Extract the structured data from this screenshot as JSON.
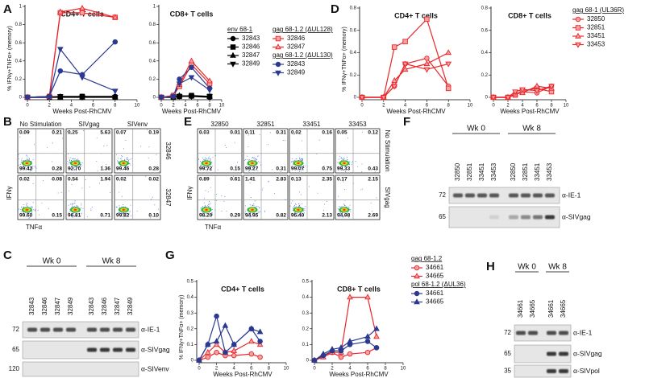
{
  "chart_data": [
    {
      "type": "line",
      "label": "A",
      "title": "CD4+ T cells",
      "xlabel": "Weeks Post-RhCMV",
      "ylabel": "% IFNγ+TNFα+ (memory)",
      "x": [
        0,
        2,
        3,
        5,
        8
      ],
      "xlim": [
        0,
        10
      ],
      "xticks": [
        0,
        2,
        4,
        6,
        8,
        10
      ],
      "ylim": [
        0,
        1
      ],
      "yticks": [
        0,
        0.2,
        0.4,
        0.6,
        0.8,
        1
      ],
      "series": [
        {
          "color": "#000000",
          "fill": "#000000",
          "marker": "circle",
          "values": [
            0,
            0,
            0.01,
            0.01,
            0.01
          ]
        },
        {
          "color": "#000000",
          "fill": "#000000",
          "marker": "square",
          "values": [
            0,
            0,
            0,
            0.01,
            0
          ]
        },
        {
          "color": "#000000",
          "fill": "#000000",
          "marker": "triangle",
          "values": [
            0,
            0.01,
            0,
            0,
            0.01
          ]
        },
        {
          "color": "#000000",
          "fill": "#000000",
          "marker": "triangle-down",
          "values": [
            0,
            0,
            0.01,
            0,
            0
          ]
        },
        {
          "color": "#e8262a",
          "fill": "#f7a1a1",
          "marker": "square",
          "values": [
            0,
            0.01,
            0.93,
            0.93,
            0.88
          ]
        },
        {
          "color": "#e8262a",
          "fill": "#f7a1a1",
          "marker": "triangle",
          "values": [
            0,
            0.01,
            0.94,
            0.98,
            0.88
          ]
        },
        {
          "color": "#2b3990",
          "fill": "#2b3990",
          "marker": "circle",
          "values": [
            0,
            0.01,
            0.29,
            0.25,
            0.61
          ]
        },
        {
          "color": "#2b3990",
          "fill": "#2b3990",
          "marker": "triangle-down",
          "values": [
            0,
            0,
            0.53,
            0.22,
            0.07
          ]
        }
      ]
    },
    {
      "type": "line",
      "title": "CD8+ T cells",
      "xlabel": "Weeks Post-RhCMV",
      "x": [
        0,
        2,
        3,
        5,
        8
      ],
      "xlim": [
        0,
        10
      ],
      "xticks": [
        0,
        2,
        4,
        6,
        8,
        10
      ],
      "ylim": [
        0,
        1
      ],
      "yticks": [
        0,
        0.2,
        0.4,
        0.6,
        0.8,
        1
      ],
      "series": [
        {
          "color": "#000000",
          "fill": "#000000",
          "marker": "circle",
          "values": [
            0,
            0.01,
            0.01,
            0.01,
            0
          ]
        },
        {
          "color": "#000000",
          "fill": "#000000",
          "marker": "square",
          "values": [
            0,
            0,
            0.01,
            0.02,
            0.01
          ]
        },
        {
          "color": "#000000",
          "fill": "#000000",
          "marker": "triangle",
          "values": [
            0,
            0.01,
            0.02,
            0.01,
            0.01
          ]
        },
        {
          "color": "#000000",
          "fill": "#000000",
          "marker": "triangle-down",
          "values": [
            0,
            0,
            0.01,
            0.01,
            0.01
          ]
        },
        {
          "color": "#e8262a",
          "fill": "#f7a1a1",
          "marker": "square",
          "values": [
            0,
            0.02,
            0.12,
            0.36,
            0.15
          ]
        },
        {
          "color": "#e8262a",
          "fill": "#f7a1a1",
          "marker": "triangle",
          "values": [
            0,
            0.02,
            0.14,
            0.4,
            0.18
          ]
        },
        {
          "color": "#2b3990",
          "fill": "#2b3990",
          "marker": "circle",
          "values": [
            0,
            0.01,
            0.2,
            0.33,
            0.1
          ]
        },
        {
          "color": "#2b3990",
          "fill": "#2b3990",
          "marker": "triangle-down",
          "values": [
            0,
            0.01,
            0.15,
            0.22,
            0.08
          ]
        }
      ],
      "legend": [
        {
          "title": "env 68-1",
          "color": "#000000",
          "names": [
            "32843",
            "32846",
            "32847",
            "32849"
          ]
        },
        {
          "title": "gag 68-1.2 (ΔUL128)",
          "color": "#e8262a",
          "names": [
            "32846",
            "32847"
          ]
        },
        {
          "title": "gag 68-1.2 (ΔUL130)",
          "color": "#2b3990",
          "names": [
            "32843",
            "32849"
          ]
        }
      ]
    },
    {
      "type": "line",
      "label": "D",
      "title": "CD4+ T cells",
      "xlabel": "Weeks Post-RhCMV",
      "ylabel": "% IFNγ+TNFα+ (memory)",
      "x": [
        0,
        2,
        3,
        4,
        6,
        8
      ],
      "xlim": [
        0,
        10
      ],
      "xticks": [
        0,
        2,
        4,
        6,
        8,
        10
      ],
      "ylim": [
        0,
        0.8
      ],
      "yticks": [
        0,
        0.2,
        0.4,
        0.6,
        0.8
      ],
      "series": [
        {
          "color": "#e8262a",
          "fill": "#f7a1a1",
          "marker": "circle",
          "values": [
            0,
            0,
            0.1,
            0.3,
            0.35,
            0.1
          ]
        },
        {
          "color": "#e8262a",
          "fill": "#f7a1a1",
          "marker": "square",
          "values": [
            0,
            0,
            0.45,
            0.5,
            0.7,
            0.08
          ]
        },
        {
          "color": "#e8262a",
          "fill": "#f7a1a1",
          "marker": "triangle",
          "values": [
            0,
            0,
            0.15,
            0.25,
            0.3,
            0.4
          ]
        },
        {
          "color": "#e8262a",
          "fill": "#f7a1a1",
          "marker": "triangle-down",
          "values": [
            0,
            0,
            0.1,
            0.3,
            0.25,
            0.3
          ]
        }
      ]
    },
    {
      "type": "line",
      "title": "CD8+ T cells",
      "xlabel": "Weeks Post-RhCMV",
      "x": [
        0,
        2,
        3,
        4,
        6,
        8
      ],
      "xlim": [
        0,
        10
      ],
      "xticks": [
        0,
        2,
        4,
        6,
        8,
        10
      ],
      "ylim": [
        0,
        0.8
      ],
      "yticks": [
        0,
        0.2,
        0.4,
        0.6,
        0.8
      ],
      "series": [
        {
          "color": "#e8262a",
          "fill": "#f7a1a1",
          "marker": "circle",
          "values": [
            0,
            0,
            0.03,
            0.05,
            0.04,
            0.1
          ]
        },
        {
          "color": "#e8262a",
          "fill": "#f7a1a1",
          "marker": "square",
          "values": [
            0,
            0,
            0.02,
            0.06,
            0.08,
            0.05
          ]
        },
        {
          "color": "#e8262a",
          "fill": "#f7a1a1",
          "marker": "triangle",
          "values": [
            0,
            0,
            0.03,
            0.04,
            0.1,
            0.08
          ]
        },
        {
          "color": "#e8262a",
          "fill": "#f7a1a1",
          "marker": "triangle-down",
          "values": [
            0,
            0,
            0.05,
            0.07,
            0.06,
            0.1
          ]
        }
      ],
      "legend": [
        {
          "title": "gag 68-1 (UL36R)",
          "color": "#e8262a",
          "names": [
            "32850",
            "32851",
            "33451",
            "33453"
          ]
        }
      ]
    },
    {
      "type": "line",
      "label": "G",
      "title": "CD4+ T cells",
      "xlabel": "Weeks Post-RhCMV",
      "ylabel": "% IFNγ+TNFα+ (memory)",
      "x": [
        0,
        1,
        2,
        3,
        4,
        6,
        7
      ],
      "xlim": [
        0,
        10
      ],
      "xticks": [
        0,
        2,
        4,
        6,
        8,
        10
      ],
      "ylim": [
        0,
        0.5
      ],
      "yticks": [
        0,
        0.1,
        0.2,
        0.3,
        0.4,
        0.5
      ],
      "series": [
        {
          "color": "#e8262a",
          "fill": "#f7a1a1",
          "marker": "circle",
          "values": [
            0,
            0.02,
            0.05,
            0.03,
            0.03,
            0.04,
            0.02
          ]
        },
        {
          "color": "#e8262a",
          "fill": "#f7a1a1",
          "marker": "triangle",
          "values": [
            0,
            0.05,
            0.1,
            0.05,
            0.06,
            0.12,
            0.1
          ]
        },
        {
          "color": "#2b3990",
          "fill": "#2b3990",
          "marker": "circle",
          "values": [
            0,
            0.1,
            0.28,
            0.05,
            0.1,
            0.2,
            0.12
          ]
        },
        {
          "color": "#2b3990",
          "fill": "#2b3990",
          "marker": "triangle",
          "values": [
            0,
            0.1,
            0.12,
            0.22,
            0.1,
            0.2,
            0.18
          ]
        }
      ]
    },
    {
      "type": "line",
      "title": "CD8+ T cells",
      "xlabel": "Weeks Post-RhCMV",
      "x": [
        0,
        1,
        2,
        3,
        4,
        6,
        7
      ],
      "xlim": [
        0,
        10
      ],
      "xticks": [
        0,
        2,
        4,
        6,
        8,
        10
      ],
      "ylim": [
        0,
        0.5
      ],
      "yticks": [
        0,
        0.1,
        0.2,
        0.3,
        0.4,
        0.5
      ],
      "series": [
        {
          "color": "#e8262a",
          "fill": "#f7a1a1",
          "marker": "circle",
          "values": [
            0,
            0.03,
            0.05,
            0.02,
            0.04,
            0.05,
            0.08
          ]
        },
        {
          "color": "#e8262a",
          "fill": "#f7a1a1",
          "marker": "triangle",
          "values": [
            0,
            0.02,
            0.05,
            0.05,
            0.4,
            0.4,
            0.15
          ]
        },
        {
          "color": "#2b3990",
          "fill": "#2b3990",
          "marker": "circle",
          "values": [
            0,
            0.03,
            0.06,
            0.06,
            0.1,
            0.12,
            0.08
          ]
        },
        {
          "color": "#2b3990",
          "fill": "#2b3990",
          "marker": "triangle",
          "values": [
            0,
            0.04,
            0.07,
            0.08,
            0.12,
            0.15,
            0.2
          ]
        }
      ],
      "legend": [
        {
          "title": "gag 68-1.2",
          "color": "#e8262a",
          "names": [
            "34661",
            "34665"
          ]
        },
        {
          "title": "pol 68-1.2 (ΔUL36)",
          "color": "#2b3990",
          "names": [
            "34661",
            "34665"
          ]
        }
      ]
    }
  ],
  "flow_panels": [
    {
      "label": "B",
      "col_titles": [
        "No Stimulation",
        "SIVgag",
        "SIVenv"
      ],
      "row_titles": [
        "32846",
        "32847"
      ],
      "xlabel": "TNFα",
      "ylabel": "IFNγ",
      "quadrants": [
        [
          [
            "0.09",
            "0.21",
            "99.42",
            "0.28"
          ],
          [
            "0.25",
            "5.63",
            "92.70",
            "1.36"
          ],
          [
            "0.07",
            "0.19",
            "99.46",
            "0.28"
          ]
        ],
        [
          [
            "0.02",
            "0.08",
            "99.60",
            "0.15"
          ],
          [
            "0.54",
            "1.94",
            "96.81",
            "0.71"
          ],
          [
            "0.02",
            "0.02",
            "99.82",
            "0.10"
          ]
        ]
      ]
    },
    {
      "label": "E",
      "col_titles": [
        "32850",
        "32851",
        "33451",
        "33453"
      ],
      "row_titles": [
        "No Stimulation",
        "SIVgag"
      ],
      "xlabel": "TNFα",
      "ylabel": "IFNγ",
      "quadrants": [
        [
          [
            "0.03",
            "0.01",
            "99.72",
            "0.15"
          ],
          [
            "0.11",
            "0.31",
            "99.27",
            "0.31"
          ],
          [
            "0.02",
            "0.16",
            "99.07",
            "0.75"
          ],
          [
            "0.05",
            "0.12",
            "99.33",
            "0.43"
          ]
        ],
        [
          [
            "0.89",
            "0.61",
            "98.20",
            "0.29"
          ],
          [
            "1.41",
            "2.83",
            "94.95",
            "0.82"
          ],
          [
            "0.13",
            "2.35",
            "95.40",
            "2.13"
          ],
          [
            "0.17",
            "2.15",
            "94.98",
            "2.69"
          ]
        ]
      ]
    }
  ],
  "blots": [
    {
      "label": "C",
      "groups": [
        {
          "title": "Wk 0",
          "lanes": [
            "32843",
            "32846",
            "32847",
            "32849"
          ]
        },
        {
          "title": "Wk 8",
          "lanes": [
            "32843",
            "32846",
            "32847",
            "32849"
          ]
        }
      ],
      "rows": [
        {
          "mw": 72,
          "antibody": "α-IE-1"
        },
        {
          "mw": 65,
          "antibody": "α-SIVgag"
        },
        {
          "mw": 120,
          "antibody": "α-SIVenv"
        }
      ]
    },
    {
      "label": "F",
      "groups": [
        {
          "title": "Wk 0",
          "lanes": [
            "32850",
            "32851",
            "33451",
            "33453"
          ]
        },
        {
          "title": "Wk 8",
          "lanes": [
            "32850",
            "32851",
            "33451",
            "33453"
          ]
        }
      ],
      "rows": [
        {
          "mw": 72,
          "antibody": "α-IE-1"
        },
        {
          "mw": 65,
          "antibody": "α-SIVgag"
        }
      ]
    },
    {
      "label": "H",
      "groups": [
        {
          "title": "Wk 0",
          "lanes": [
            "34661",
            "34665"
          ]
        },
        {
          "title": "Wk 8",
          "lanes": [
            "34661",
            "34665"
          ]
        }
      ],
      "rows": [
        {
          "mw": 72,
          "antibody": "α-IE-1"
        },
        {
          "mw": 65,
          "antibody": "α-SIVgag"
        },
        {
          "mw": 35,
          "antibody": "α-SIVpol"
        }
      ]
    }
  ]
}
